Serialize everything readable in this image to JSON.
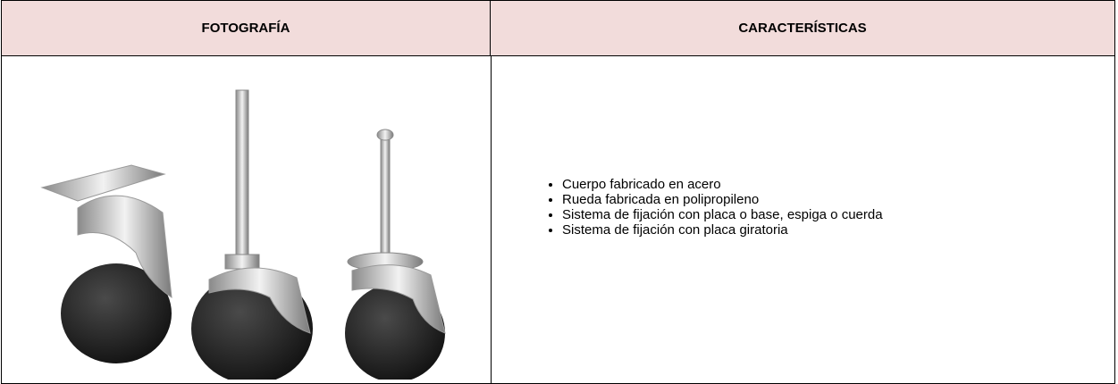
{
  "table": {
    "headers": [
      "FOTOGRAFÍA",
      "CARACTERÍSTICAS"
    ],
    "features": [
      "Cuerpo fabricado en acero",
      "Rueda fabricada en polipropileno",
      "Sistema de fijación con placa o base, espiga o cuerda",
      "Sistema de fijación con placa giratoria"
    ]
  }
}
